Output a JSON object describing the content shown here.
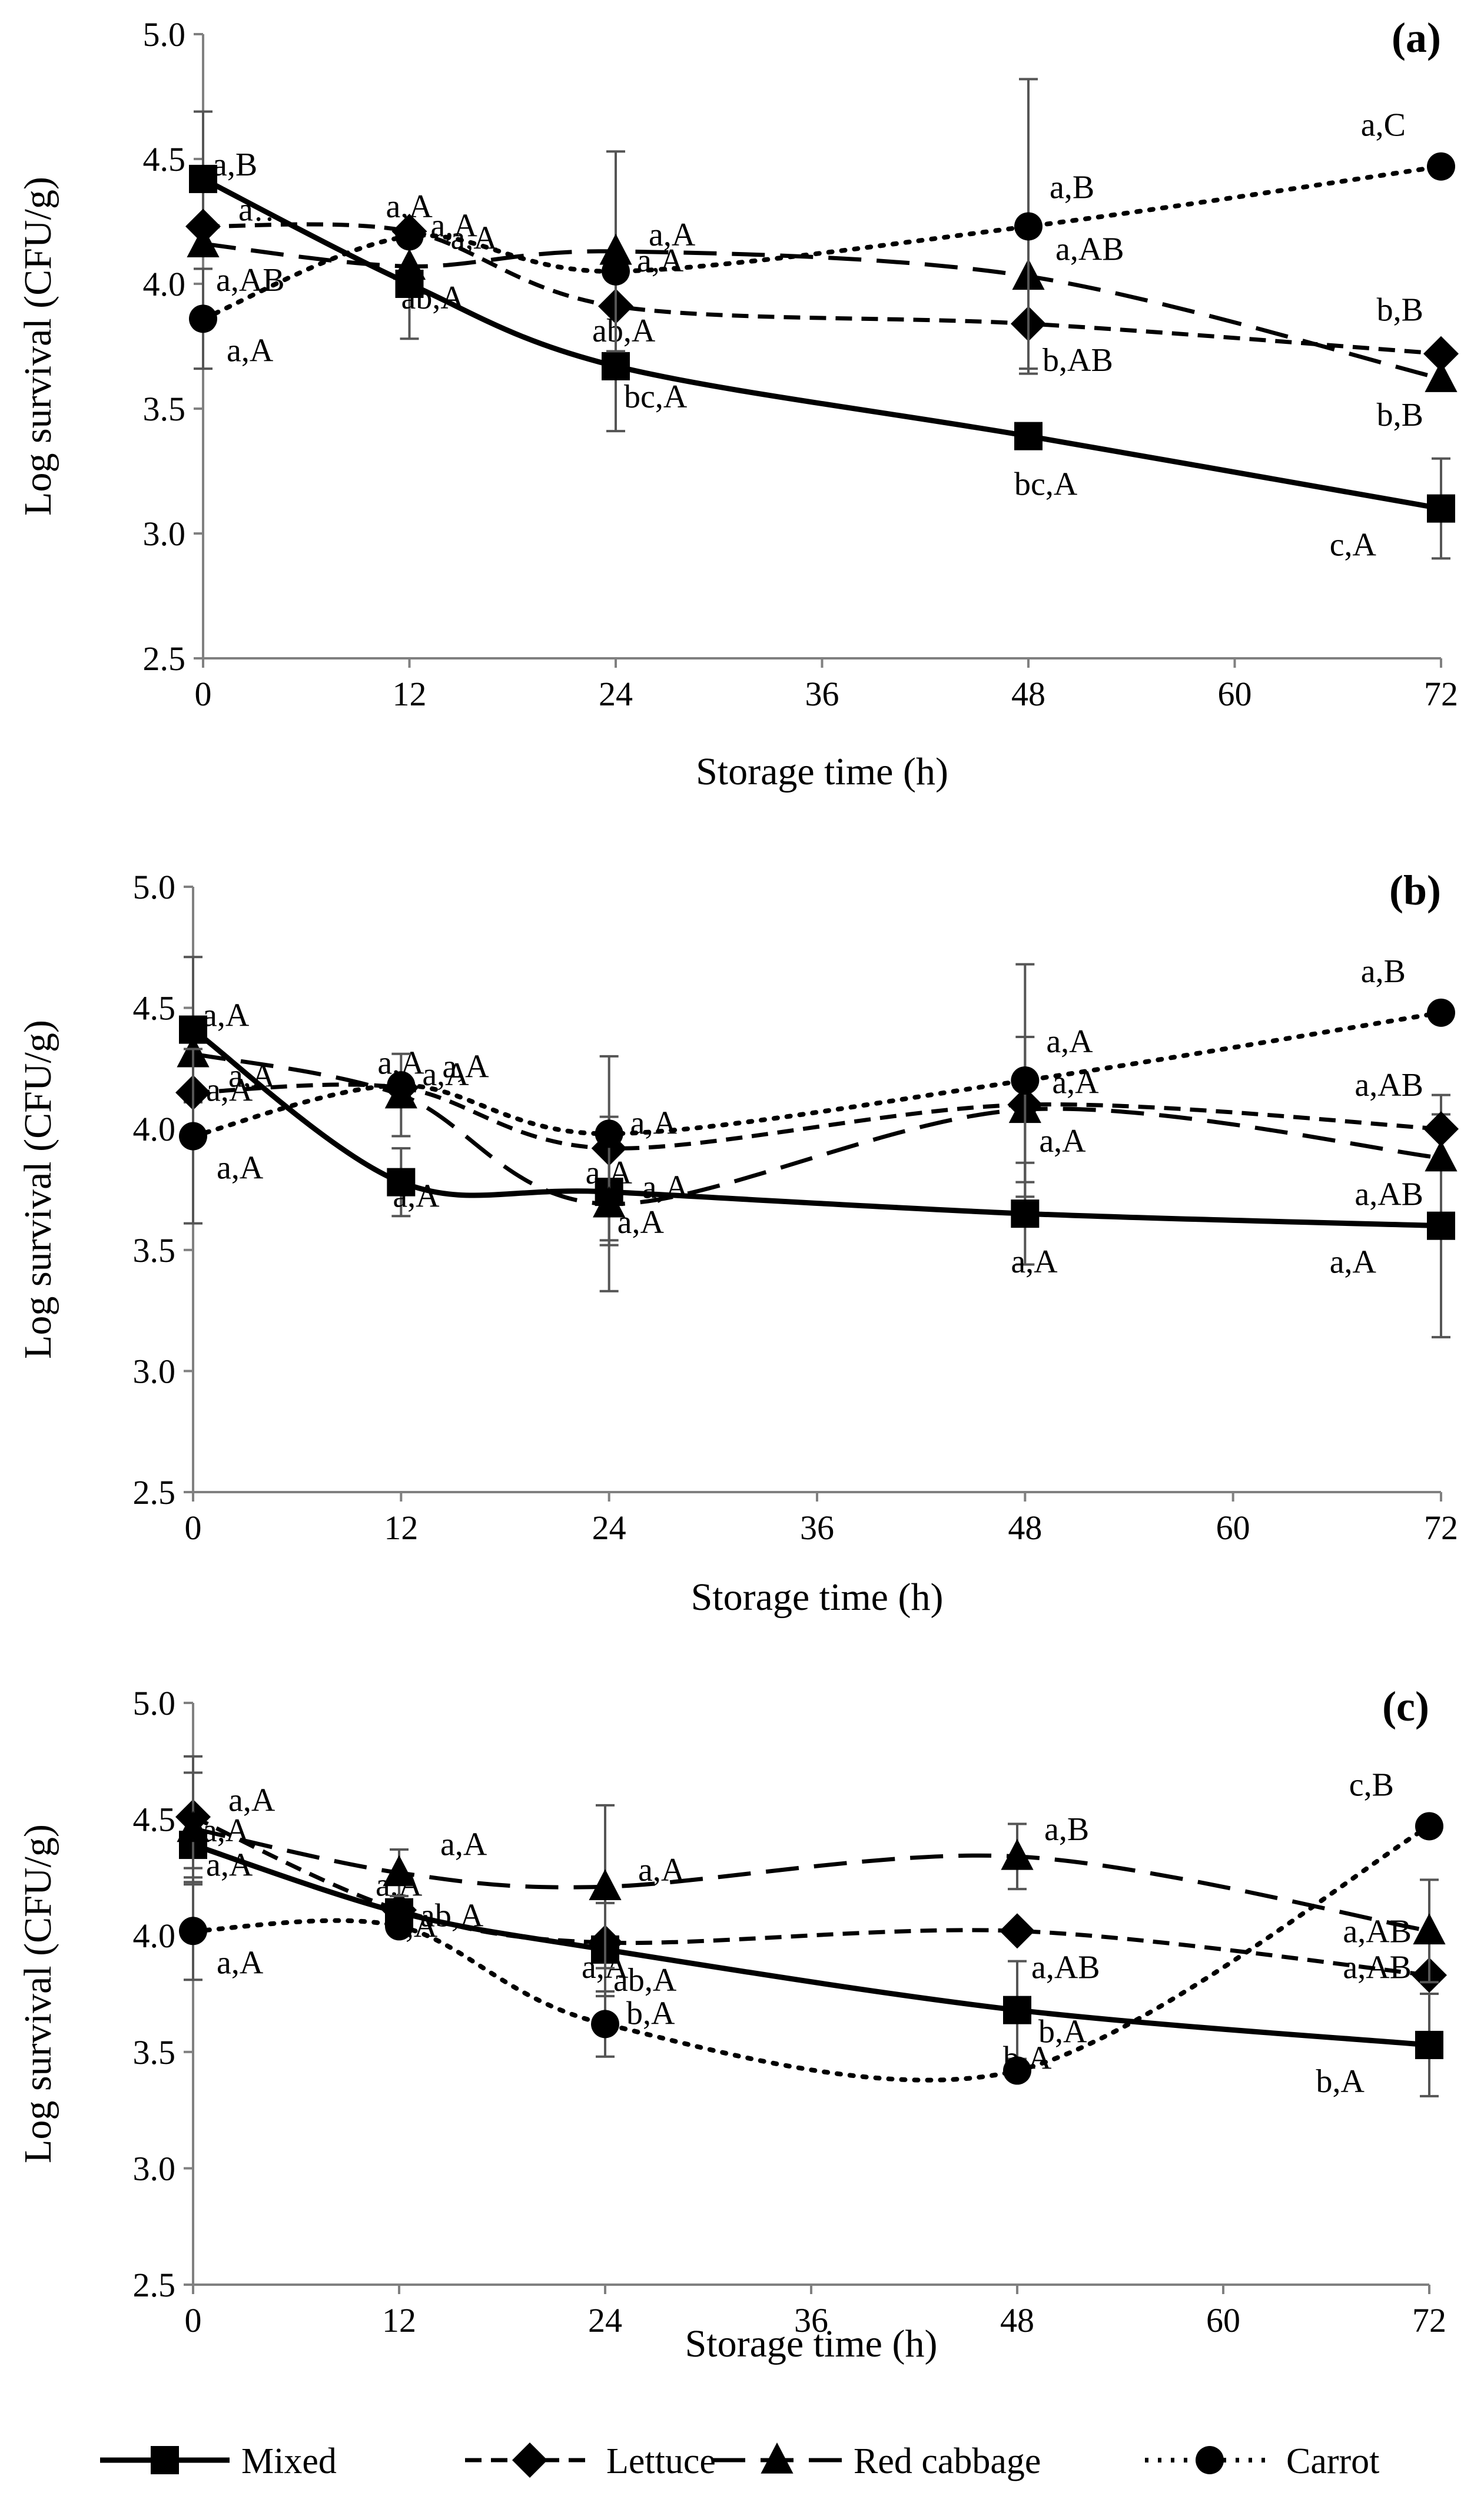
{
  "chart_data": [
    {
      "type": "line",
      "panel_label": "(a)",
      "xlabel": "Storage time (h)",
      "ylabel": "Log survival (CFU/g)",
      "x": [
        0,
        12,
        24,
        48,
        72
      ],
      "x_ticks": [
        0,
        12,
        24,
        36,
        48,
        60,
        72
      ],
      "y_ticks": [
        2.5,
        3.0,
        3.5,
        4.0,
        4.5,
        5.0
      ],
      "ylim": [
        2.5,
        5.0
      ],
      "grid": false,
      "series": [
        {
          "name": "Mixed",
          "values": [
            4.42,
            4.0,
            3.67,
            3.39,
            3.1
          ],
          "errors": [
            0.27,
            0.22,
            0.26,
            0.0,
            0.2
          ],
          "labels": [
            "a,B",
            "ab,A",
            "bc,A",
            "bc,A",
            "c,A"
          ]
        },
        {
          "name": "Lettuce",
          "values": [
            4.23,
            4.21,
            3.91,
            3.84,
            3.72
          ],
          "errors": [
            0.0,
            0.0,
            0.0,
            0.18,
            0.0
          ],
          "labels": [
            "a…",
            "a,A",
            "ab,A",
            "b,AB",
            "b,B"
          ]
        },
        {
          "name": "Red cabbage",
          "values": [
            4.16,
            4.07,
            4.13,
            4.03,
            3.62
          ],
          "errors": [
            0.0,
            0.0,
            0.4,
            0.0,
            0.0
          ],
          "labels": [
            "a,AB",
            "a,A",
            "a,A",
            "a,AB",
            "b,B"
          ]
        },
        {
          "name": "Carrot",
          "values": [
            3.86,
            4.19,
            4.05,
            4.23,
            4.47
          ],
          "errors": [
            0.2,
            0.0,
            0.0,
            0.59,
            0.0
          ],
          "labels": [
            "a,A",
            "a,A",
            "a,A",
            "a,B",
            "a,C"
          ]
        }
      ]
    },
    {
      "type": "line",
      "panel_label": "(b)",
      "xlabel": "Storage time (h)",
      "ylabel": "Log survival (CFU/g)",
      "x": [
        0,
        12,
        24,
        48,
        72
      ],
      "x_ticks": [
        0,
        12,
        24,
        36,
        48,
        60,
        72
      ],
      "y_ticks": [
        2.5,
        3.0,
        3.5,
        4.0,
        4.5,
        5.0
      ],
      "ylim": [
        2.5,
        5.0
      ],
      "grid": false,
      "series": [
        {
          "name": "Mixed",
          "values": [
            4.41,
            3.78,
            3.74,
            3.65,
            3.6
          ],
          "errors": [
            0.3,
            0.14,
            0.22,
            0.21,
            0.46
          ],
          "labels": [
            "a,A",
            "a,A",
            "a,A",
            "a,A",
            "a,A"
          ]
        },
        {
          "name": "Lettuce",
          "values": [
            4.15,
            4.17,
            3.92,
            4.1,
            4.0
          ],
          "errors": [
            0.0,
            0.0,
            0.38,
            0.0,
            0.14
          ],
          "labels": [
            "a,A",
            "a,A",
            "a,A",
            "a,A",
            "a,AB"
          ]
        },
        {
          "name": "Red cabbage",
          "values": [
            4.31,
            4.14,
            3.69,
            4.08,
            3.88
          ],
          "errors": [
            0.0,
            0.17,
            0.36,
            0.3,
            0.0
          ],
          "labels": [
            "a,A",
            "a,A",
            "a,A",
            "a,A",
            "a,AB"
          ]
        },
        {
          "name": "Carrot",
          "values": [
            3.97,
            4.18,
            3.98,
            4.2,
            4.48
          ],
          "errors": [
            0.36,
            0.0,
            0.0,
            0.48,
            0.0
          ],
          "labels": [
            "a,A",
            "a,A",
            "a,A",
            "a,A",
            "a,B"
          ]
        }
      ]
    },
    {
      "type": "line",
      "panel_label": "(c)",
      "xlabel": "Storage time (h)",
      "ylabel": "Log survival (CFU/g)",
      "x": [
        0,
        12,
        24,
        48,
        72
      ],
      "x_ticks": [
        0,
        12,
        24,
        36,
        48,
        60,
        72
      ],
      "y_ticks": [
        2.5,
        3.0,
        3.5,
        4.0,
        4.5,
        5.0
      ],
      "ylim": [
        2.5,
        5.0
      ],
      "grid": false,
      "series": [
        {
          "name": "Mixed",
          "values": [
            4.39,
            4.1,
            3.94,
            3.68,
            3.53
          ],
          "errors": [
            0.1,
            0.0,
            0.2,
            0.21,
            0.22
          ],
          "labels": [
            "a,A",
            "a,A",
            "ab,A",
            "b,A",
            "b,A"
          ]
        },
        {
          "name": "Lettuce",
          "values": [
            4.51,
            4.11,
            3.97,
            4.02,
            3.83
          ],
          "errors": [
            0.26,
            0.0,
            0.0,
            0.0,
            0.0
          ],
          "labels": [
            "a,A",
            "a,A",
            "a,A",
            "a,AB",
            "a,AB"
          ]
        },
        {
          "name": "Red cabbage",
          "values": [
            4.46,
            4.27,
            4.21,
            4.34,
            4.02
          ],
          "errors": [
            0.24,
            0.1,
            0.35,
            0.14,
            0.22
          ],
          "labels": [
            "a,A",
            "a,A",
            "a,A",
            "a,B",
            "a,AB"
          ]
        },
        {
          "name": "Carrot",
          "values": [
            4.02,
            4.04,
            3.62,
            3.42,
            4.47
          ],
          "errors": [
            0.21,
            0.0,
            0.14,
            0.0,
            0.0
          ],
          "labels": [
            "a,A",
            "ab,A",
            "b,A",
            "b,A",
            "c,B"
          ]
        }
      ]
    }
  ],
  "legend": {
    "placement": "bottom",
    "items": [
      {
        "name": "Mixed",
        "marker": "square",
        "dash": "solid"
      },
      {
        "name": "Lettuce",
        "marker": "diamond",
        "dash": "short-dash"
      },
      {
        "name": "Red cabbage",
        "marker": "triangle",
        "dash": "long-dash"
      },
      {
        "name": "Carrot",
        "marker": "circle",
        "dash": "dotted"
      }
    ]
  },
  "colors": {
    "ink": "#000000",
    "axis": "#808080",
    "error_bar": "#555555",
    "background": "#ffffff"
  }
}
